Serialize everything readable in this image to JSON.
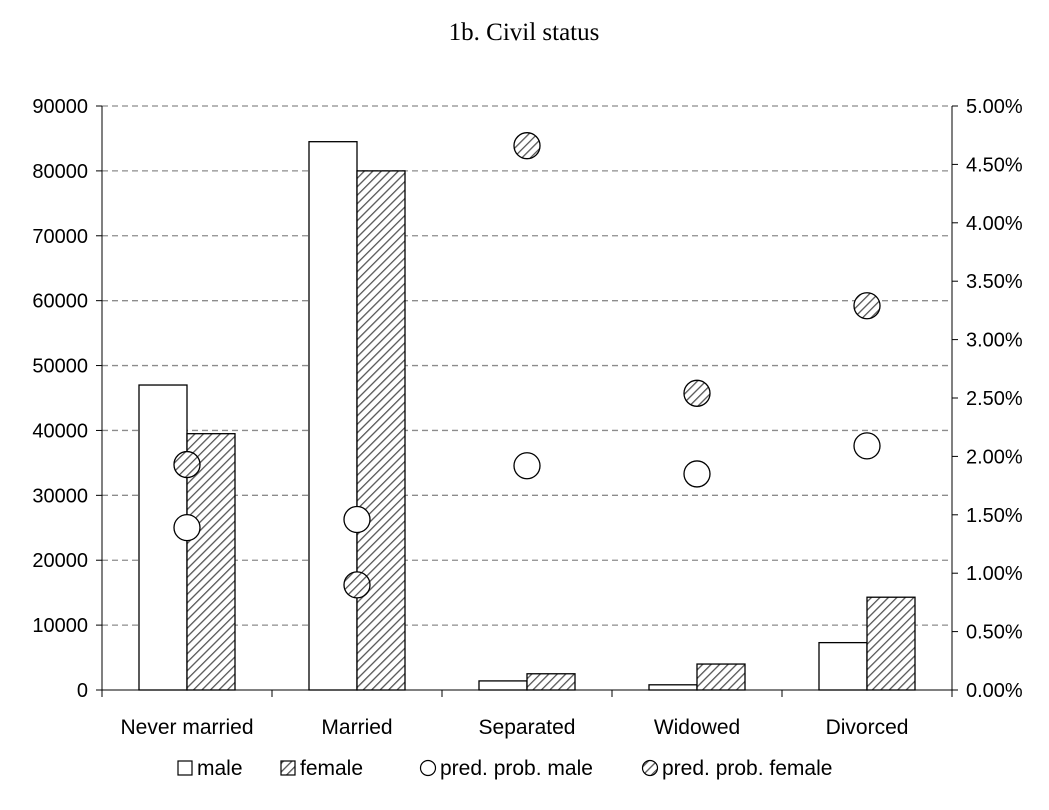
{
  "chart_data": {
    "type": "bar",
    "title": "1b. Civil status",
    "categories": [
      "Never married",
      "Married",
      "Separated",
      "Widowed",
      "Divorced"
    ],
    "series": [
      {
        "name": "male",
        "kind": "bar",
        "axis": "left",
        "values": [
          47000,
          84500,
          1400,
          800,
          7300
        ]
      },
      {
        "name": "female",
        "kind": "bar",
        "axis": "left",
        "values": [
          39500,
          80000,
          2500,
          4000,
          14300
        ]
      },
      {
        "name": "pred. prob. male",
        "kind": "scatter",
        "axis": "right",
        "values": [
          0.0139,
          0.0146,
          0.0192,
          0.0185,
          0.0209
        ]
      },
      {
        "name": "pred. prob. female",
        "kind": "scatter",
        "axis": "right",
        "values": [
          0.0193,
          0.009,
          0.0466,
          0.0254,
          0.0329
        ]
      }
    ],
    "y_left": {
      "min": 0,
      "max": 90000,
      "ticks": [
        "0",
        "10000",
        "20000",
        "30000",
        "40000",
        "50000",
        "60000",
        "70000",
        "80000",
        "90000"
      ]
    },
    "y_right": {
      "min": 0,
      "max": 0.05,
      "ticks": [
        "0.00%",
        "0.50%",
        "1.00%",
        "1.50%",
        "2.00%",
        "2.50%",
        "3.00%",
        "3.50%",
        "4.00%",
        "4.50%",
        "5.00%"
      ]
    },
    "grid": true,
    "legend_position": "bottom",
    "legend": [
      "male",
      "female",
      "pred. prob. male",
      "pred. prob. female"
    ],
    "colors": {
      "male": "#ffffff",
      "female_hatch": "#555555",
      "outline": "#000000",
      "grid": "#8c8c8c"
    }
  }
}
